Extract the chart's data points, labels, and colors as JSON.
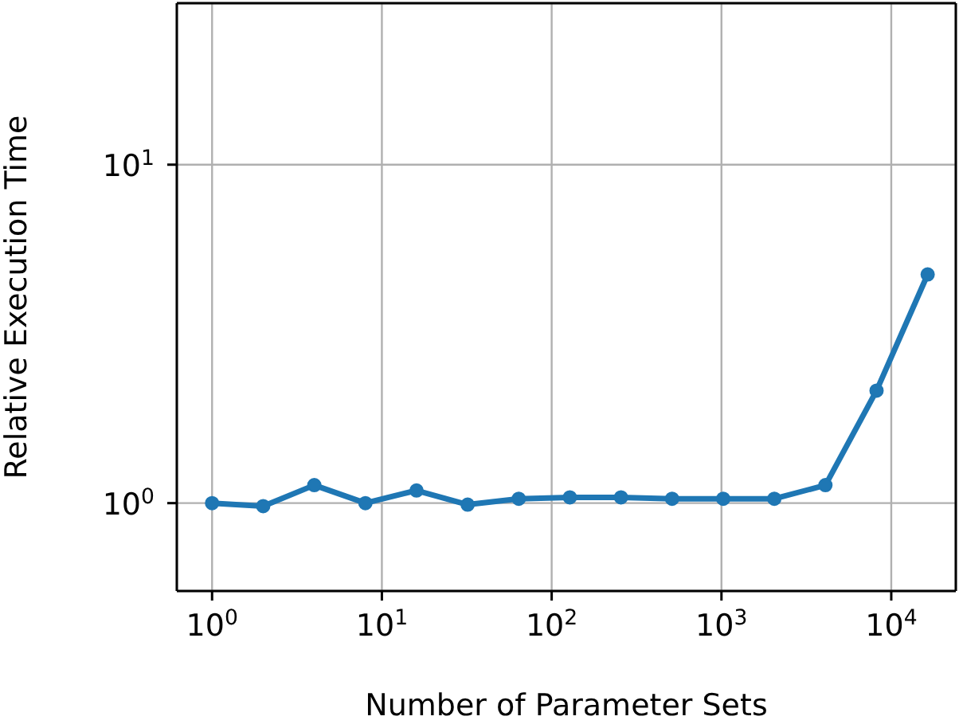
{
  "chart_data": {
    "type": "line",
    "xlabel": "Number of Parameter Sets",
    "ylabel": "Relative Execution Time",
    "x": [
      1,
      2,
      4,
      8,
      16,
      32,
      64,
      128,
      256,
      512,
      1024,
      2048,
      4096,
      8192,
      16384
    ],
    "series": [
      {
        "color": "#1f77b4",
        "values": [
          1.0,
          0.98,
          1.13,
          1.0,
          1.09,
          0.99,
          1.03,
          1.04,
          1.04,
          1.03,
          1.03,
          1.03,
          1.13,
          2.15,
          4.74
        ]
      }
    ],
    "log": "xy",
    "grid": true,
    "marker": "circle",
    "line_style": "solid",
    "xlim": [
      0.62,
      24000
    ],
    "ylim": [
      0.55,
      30
    ],
    "xticks": [
      {
        "value": 1,
        "label": "10$^{0}$"
      },
      {
        "value": 10,
        "label": "10$^{1}$"
      },
      {
        "value": 100,
        "label": "10$^{2}$"
      },
      {
        "value": 1000,
        "label": "10$^{3}$"
      },
      {
        "value": 10000,
        "label": "10$^{4}$"
      }
    ],
    "yticks": [
      {
        "value": 1,
        "label": "10$^{0}$"
      },
      {
        "value": 10,
        "label": "10$^{1}$"
      }
    ]
  }
}
